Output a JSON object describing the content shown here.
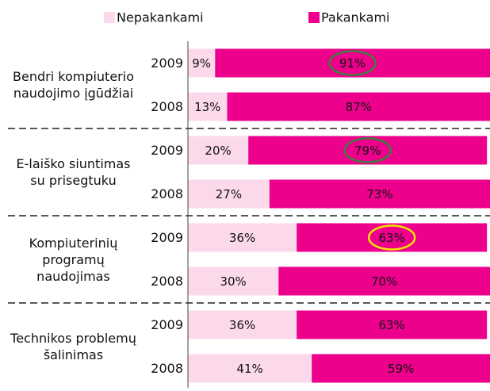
{
  "chart_data": {
    "type": "bar",
    "orientation": "horizontal",
    "stacked": true,
    "groups": [
      "Bendri kompiuterio naudojimo įgūdžiai",
      "E-laiško siuntimas su prisegtuku",
      "Kompiuterinių programų naudojimas",
      "Technikos problemų šalinimas"
    ],
    "categories": [
      "2009",
      "2008",
      "2009",
      "2008",
      "2009",
      "2008",
      "2009",
      "2008"
    ],
    "series": [
      {
        "name": "Nepakankami",
        "color": "#fcd9ea",
        "values": [
          9,
          13,
          20,
          27,
          36,
          30,
          36,
          41
        ],
        "value_labels": [
          "9%",
          "13%",
          "20%",
          "27%",
          "36%",
          "30%",
          "36%",
          "41%"
        ]
      },
      {
        "name": "Pakankami",
        "color": "#ec008c",
        "values": [
          91,
          87,
          79,
          73,
          63,
          70,
          63,
          59
        ],
        "value_labels": [
          "91%",
          "87%",
          "79%",
          "73%",
          "63%",
          "70%",
          "63%",
          "59%"
        ],
        "highlight_colors": [
          "#3f7f3f",
          null,
          "#3f7f3f",
          null,
          "#f2e400",
          null,
          null,
          null
        ]
      }
    ],
    "xlim": [
      0,
      100
    ],
    "legend": "top"
  }
}
